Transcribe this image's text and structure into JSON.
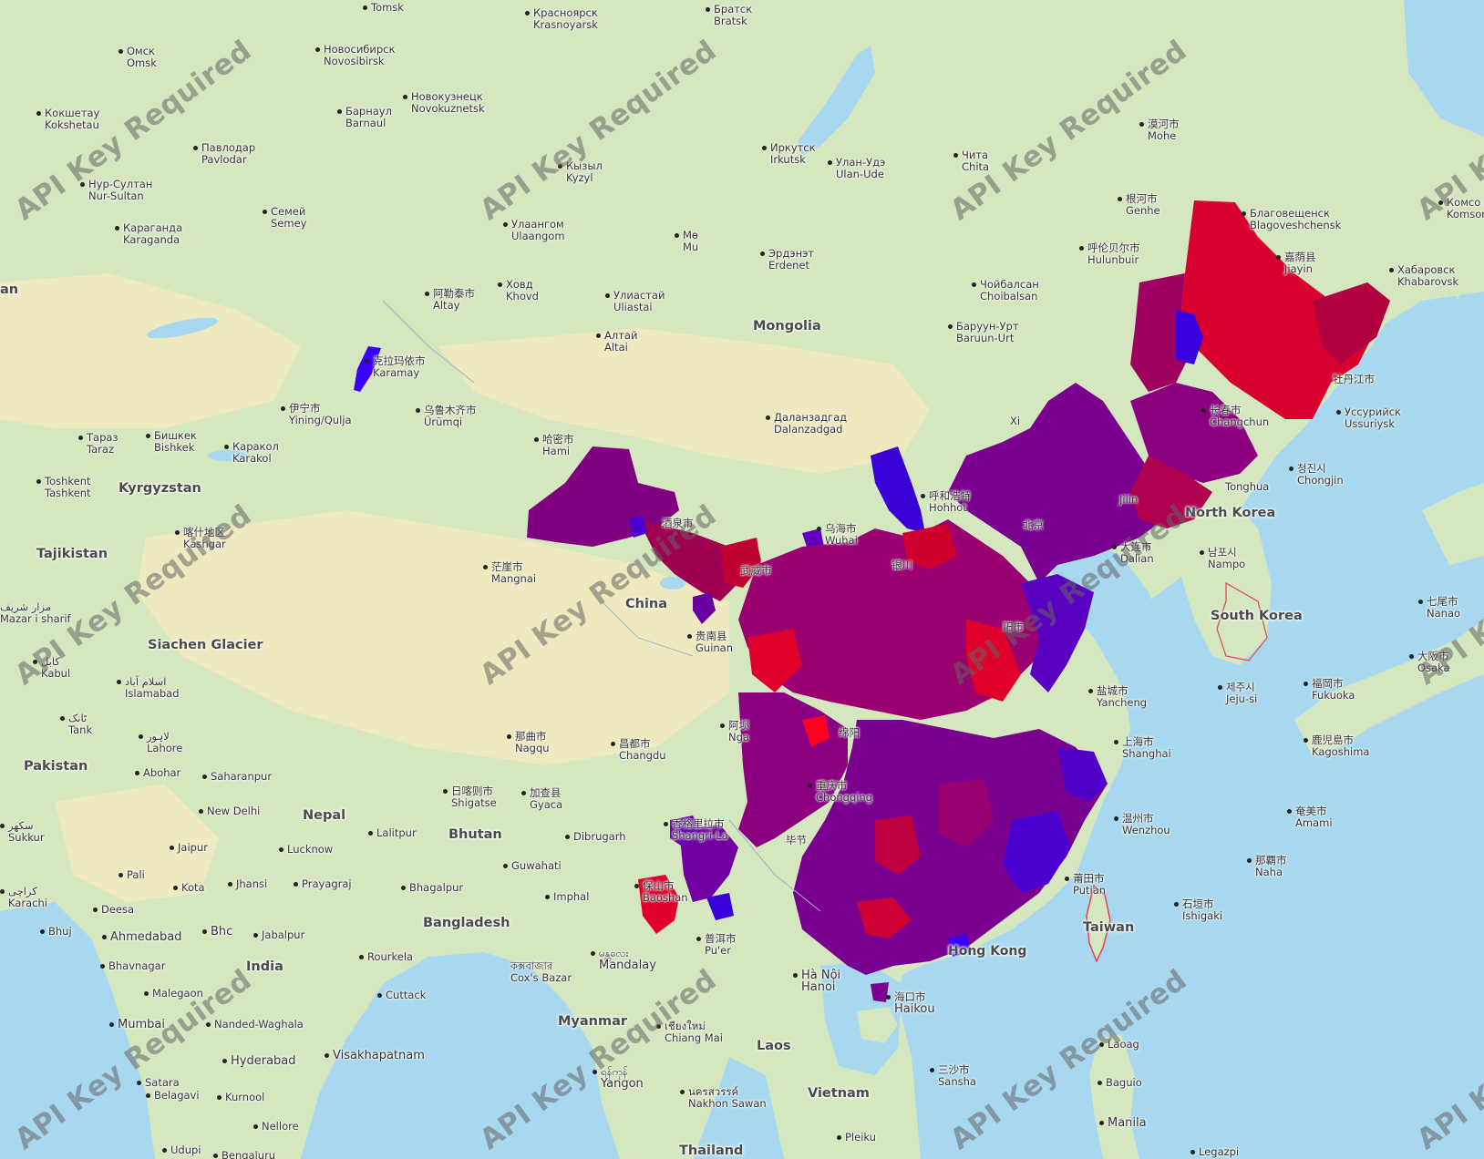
{
  "watermark": "API Key Required",
  "colors": {
    "ocean": "#a8d8f0",
    "land_green": "#d2e6bc",
    "land_yellow": "#f0ecc0",
    "choropleth_low": "#3a00ff",
    "choropleth_high": "#ff0020",
    "border_hint": "#e04060"
  },
  "countries": [
    {
      "name": "Mongolia"
    },
    {
      "name": "China"
    },
    {
      "name": "Kyrgyzstan"
    },
    {
      "name": "Tajikistan"
    },
    {
      "name": "North Korea"
    },
    {
      "name": "South Korea"
    },
    {
      "name": "Nepal"
    },
    {
      "name": "Bhutan"
    },
    {
      "name": "Pakistan"
    },
    {
      "name": "India"
    },
    {
      "name": "Bangladesh"
    },
    {
      "name": "Myanmar"
    },
    {
      "name": "Laos"
    },
    {
      "name": "Vietnam"
    },
    {
      "name": "Thailand"
    },
    {
      "name": "Taiwan"
    },
    {
      "name": "Siachen Glacier"
    },
    {
      "name": "an"
    }
  ],
  "cities": [
    {
      "l1": "Tomsk",
      "l2": ""
    },
    {
      "l1": "Красноярск",
      "l2": "Krasnoyarsk"
    },
    {
      "l1": "Братск",
      "l2": "Bratsk"
    },
    {
      "l1": "Омск",
      "l2": "Omsk"
    },
    {
      "l1": "Новосибирск",
      "l2": "Novosibirsk"
    },
    {
      "l1": "Барнаул",
      "l2": "Barnaul"
    },
    {
      "l1": "Новокузнецк",
      "l2": "Novokuznetsk"
    },
    {
      "l1": "Кокшетау",
      "l2": "Kokshetau"
    },
    {
      "l1": "Павлодар",
      "l2": "Pavlodar"
    },
    {
      "l1": "Нур-Султан",
      "l2": "Nur-Sultan"
    },
    {
      "l1": "Семей",
      "l2": "Semey"
    },
    {
      "l1": "Караганда",
      "l2": "Karaganda"
    },
    {
      "l1": "Иркутск",
      "l2": "Irkutsk"
    },
    {
      "l1": "Улан-Удэ",
      "l2": "Ulan-Ude"
    },
    {
      "l1": "Чита",
      "l2": "Chita"
    },
    {
      "l1": "漠河市",
      "l2": "Mohe"
    },
    {
      "l1": "Кызыл",
      "l2": "Kyzyl"
    },
    {
      "l1": "Улаангом",
      "l2": "Ulaangom"
    },
    {
      "l1": "Мө",
      "l2": "Mu"
    },
    {
      "l1": "Эрдэнэт",
      "l2": "Erdenet"
    },
    {
      "l1": "根河市",
      "l2": "Genhe"
    },
    {
      "l1": "Благовещенск",
      "l2": "Blagoveshchensk"
    },
    {
      "l1": "Комсо",
      "l2": "Komsor"
    },
    {
      "l1": "呼伦贝尔市",
      "l2": "Hulunbuir"
    },
    {
      "l1": "嘉荫县",
      "l2": "Jiayin"
    },
    {
      "l1": "Хабаровск",
      "l2": "Khabarovsk"
    },
    {
      "l1": "Чойбалсан",
      "l2": "Choibalsan"
    },
    {
      "l1": "阿勒泰市",
      "l2": "Altay"
    },
    {
      "l1": "Ховд",
      "l2": "Khovd"
    },
    {
      "l1": "Улиастай",
      "l2": "Uliastai"
    },
    {
      "l1": "Алтай",
      "l2": "Altai"
    },
    {
      "l1": "Баруун-Урт",
      "l2": "Baruun-Urt"
    },
    {
      "l1": "克拉玛依市",
      "l2": "Karamay"
    },
    {
      "l1": "伊宁市",
      "l2": "Yining/Qulja"
    },
    {
      "l1": "乌鲁木齐市",
      "l2": "Ürümqi"
    },
    {
      "l1": "Тараз",
      "l2": "Taraz"
    },
    {
      "l1": "Бишкек",
      "l2": "Bishkek"
    },
    {
      "l1": "Каракол",
      "l2": "Karakol"
    },
    {
      "l1": "哈密市",
      "l2": "Hami"
    },
    {
      "l1": "Далан­задгад",
      "l2": "Dalanzadgad"
    },
    {
      "l1": "长春市",
      "l2": "Changchun"
    },
    {
      "l1": "Уссурийск",
      "l2": "Ussuriysk"
    },
    {
      "l1": "Toshkent",
      "l2": "Tashkent"
    },
    {
      "l1": "청진시",
      "l2": "Chongjin"
    },
    {
      "l1": "喀什地区",
      "l2": "Kashgar"
    },
    {
      "l1": "呼和浩特",
      "l2": "Hohhot"
    },
    {
      "l1": "乌海市",
      "l2": "Wuhai"
    },
    {
      "l1": "大连市",
      "l2": "Dalian"
    },
    {
      "l1": "남포시",
      "l2": "Nampo"
    },
    {
      "l1": "茫崖市",
      "l2": "Mangnai"
    },
    {
      "l1": "مزار شریف",
      "l2": "Mazar i sharif"
    },
    {
      "l1": "七尾市",
      "l2": "Nanao"
    },
    {
      "l1": "贵南县",
      "l2": "Guinan"
    },
    {
      "l1": "کابل",
      "l2": "Kabul"
    },
    {
      "l1": "اسلام آباد",
      "l2": "Islamabad"
    },
    {
      "l1": "大阪市",
      "l2": "Osaka"
    },
    {
      "l1": "福岡市",
      "l2": "Fukuoka"
    },
    {
      "l1": "盐城市",
      "l2": "Yancheng"
    },
    {
      "l1": "제주시",
      "l2": "Jeju-si"
    },
    {
      "l1": "ٹانک",
      "l2": "Tank"
    },
    {
      "l1": "لاہور",
      "l2": "Lahore"
    },
    {
      "l1": "阿坝",
      "l2": "Nga"
    },
    {
      "l1": "那曲市",
      "l2": "Nagqu"
    },
    {
      "l1": "昌都市",
      "l2": "Changdu"
    },
    {
      "l1": "上海市",
      "l2": "Shanghai"
    },
    {
      "l1": "鹿児島市",
      "l2": "Kagoshima"
    },
    {
      "l1": "Abohar",
      "l2": ""
    },
    {
      "l1": "Saharanpur",
      "l2": ""
    },
    {
      "l1": "重庆市",
      "l2": "Chongqing"
    },
    {
      "l1": "日喀则市",
      "l2": "Shigatse"
    },
    {
      "l1": "加查县",
      "l2": "Gyaca"
    },
    {
      "l1": "New Delhi",
      "l2": ""
    },
    {
      "l1": "温州市",
      "l2": "Wenzhou"
    },
    {
      "l1": "奄美市",
      "l2": "Amami"
    },
    {
      "l1": "سکھر",
      "l2": "Sukkur"
    },
    {
      "l1": "香格里拉市",
      "l2": "Shangri-La"
    },
    {
      "l1": "Lalitpur",
      "l2": ""
    },
    {
      "l1": "Dibrugarh",
      "l2": ""
    },
    {
      "l1": "Jaipur",
      "l2": ""
    },
    {
      "l1": "Lucknow",
      "l2": ""
    },
    {
      "l1": "那覇市",
      "l2": "Naha"
    },
    {
      "l1": "Pali",
      "l2": ""
    },
    {
      "l1": "Guwahati",
      "l2": ""
    },
    {
      "l1": "莆田市",
      "l2": "Putian"
    },
    {
      "l1": "كراچی",
      "l2": "Karachi"
    },
    {
      "l1": "Kota",
      "l2": ""
    },
    {
      "l1": "Jhansi",
      "l2": ""
    },
    {
      "l1": "Prayagraj",
      "l2": ""
    },
    {
      "l1": "Bhagalpur",
      "l2": ""
    },
    {
      "l1": "保山市",
      "l2": "Baoshan"
    },
    {
      "l1": "Imphal",
      "l2": ""
    },
    {
      "l1": "石垣市",
      "l2": "Ishigaki"
    },
    {
      "l1": "Deesa",
      "l2": ""
    },
    {
      "l1": "Bhuj",
      "l2": ""
    },
    {
      "l1": "Ahmedabad",
      "l2": ""
    },
    {
      "l1": "Bhc",
      "l2": ""
    },
    {
      "l1": "Jabalpur",
      "l2": ""
    },
    {
      "l1": "普洱市",
      "l2": "Pu'er"
    },
    {
      "l1": "Bhavnagar",
      "l2": ""
    },
    {
      "l1": "Rourkela",
      "l2": ""
    },
    {
      "l1": "কক্সবাজার",
      "l2": "Cox's Bazar"
    },
    {
      "l1": "မန္တလေး",
      "l2": "Mandalay"
    },
    {
      "l1": "Hà Nội",
      "l2": "Hanoi"
    },
    {
      "l1": "Malegaon",
      "l2": ""
    },
    {
      "l1": "Cuttack",
      "l2": ""
    },
    {
      "l1": "海口市",
      "l2": "Haikou"
    },
    {
      "l1": "Mumbai",
      "l2": ""
    },
    {
      "l1": "Nanded-Waghala",
      "l2": ""
    },
    {
      "l1": "เชียงใหม่",
      "l2": "Chiang Mai"
    },
    {
      "l1": "Laoag",
      "l2": ""
    },
    {
      "l1": "Hyderabad",
      "l2": ""
    },
    {
      "l1": "Visakhapatnam",
      "l2": ""
    },
    {
      "l1": "Satara",
      "l2": ""
    },
    {
      "l1": "三沙市",
      "l2": "Sansha"
    },
    {
      "l1": "Baguio",
      "l2": ""
    },
    {
      "l1": "ရန်ကုန်",
      "l2": "Yangon"
    },
    {
      "l1": "Belagavi",
      "l2": ""
    },
    {
      "l1": "Kurnool",
      "l2": ""
    },
    {
      "l1": "นครสวรรค์",
      "l2": "Nakhon Sawan"
    },
    {
      "l1": "Nellore",
      "l2": ""
    },
    {
      "l1": "Manila",
      "l2": ""
    },
    {
      "l1": "Udupi",
      "l2": ""
    },
    {
      "l1": "Bengaluru",
      "l2": ""
    },
    {
      "l1": "Pleiku",
      "l2": ""
    },
    {
      "l1": "Legazpi",
      "l2": ""
    }
  ],
  "partial_labels": [
    {
      "text": "酒泉市"
    },
    {
      "text": "武威市"
    },
    {
      "text": "银川"
    },
    {
      "text": "北京"
    },
    {
      "text": "阳市"
    },
    {
      "text": "绵阳"
    },
    {
      "text": "毕节"
    },
    {
      "text": "Hong Kong"
    },
    {
      "text": "牡丹江市"
    },
    {
      "text": "Jilin"
    },
    {
      "text": "Tonghua"
    },
    {
      "text": "Xi"
    }
  ]
}
